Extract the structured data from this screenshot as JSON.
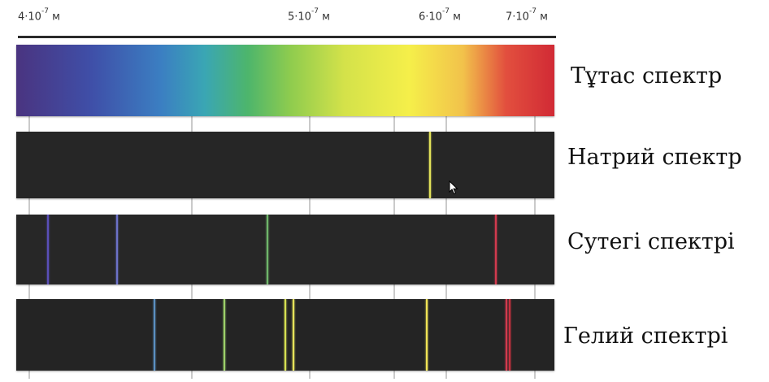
{
  "wavelength_scale": {
    "ticks": [
      {
        "mantissa": "4·10",
        "exponent": "-7",
        "unit": "м",
        "value_m": 4e-07
      },
      {
        "mantissa": "5·10",
        "exponent": "-7",
        "unit": "м",
        "value_m": 5e-07
      },
      {
        "mantissa": "6·10",
        "exponent": "-7",
        "unit": "м",
        "value_m": 6e-07
      },
      {
        "mantissa": "7·10",
        "exponent": "-7",
        "unit": "м",
        "value_m": 7e-07
      }
    ]
  },
  "spectra": {
    "continuous": {
      "label": "Тұтас спектр"
    },
    "sodium": {
      "label": "Натрий спектр",
      "lines": [
        {
          "wavelength_nm": 589,
          "color": "#e3e35a"
        }
      ]
    },
    "hydrogen": {
      "label": "Сутегі спектрі",
      "lines": [
        {
          "wavelength_nm": 410,
          "color": "#5a4fb8"
        },
        {
          "wavelength_nm": 434,
          "color": "#6c72c8"
        },
        {
          "wavelength_nm": 486,
          "color": "#6fb56a"
        },
        {
          "wavelength_nm": 656,
          "color": "#d23a4e"
        }
      ]
    },
    "helium": {
      "label": "Гелий спектрі",
      "lines": [
        {
          "wavelength_nm": 447,
          "color": "#5a8fc0"
        },
        {
          "wavelength_nm": 471,
          "color": "#9ccf6a"
        },
        {
          "wavelength_nm": 492,
          "color": "#d6df52"
        },
        {
          "wavelength_nm": 495,
          "color": "#e6e35a"
        },
        {
          "wavelength_nm": 587,
          "color": "#f0e456"
        },
        {
          "wavelength_nm": 668,
          "color": "#d23a4e"
        },
        {
          "wavelength_nm": 671,
          "color": "#c6313f"
        }
      ]
    }
  }
}
